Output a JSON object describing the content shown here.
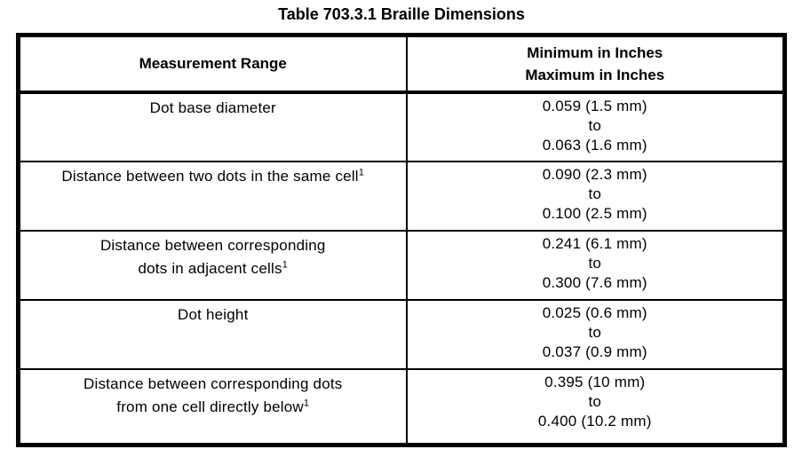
{
  "title": "Table 703.3.1 Braille Dimensions",
  "colors": {
    "text": "#000000",
    "background": "#ffffff",
    "border": "#000000"
  },
  "table": {
    "column_headers": {
      "measurement_range": "Measurement Range",
      "min_max_line1": "Minimum in Inches",
      "min_max_line2": "Maximum in Inches"
    },
    "rows": [
      {
        "label_lines": [
          "Dot base diameter"
        ],
        "footnote": "",
        "min": "0.059 (1.5 mm)",
        "separator": "to",
        "max": "0.063 (1.6 mm)"
      },
      {
        "label_lines": [
          "Distance between two dots in the same cell"
        ],
        "footnote": "1",
        "min": "0.090 (2.3 mm)",
        "separator": "to",
        "max": "0.100 (2.5 mm)"
      },
      {
        "label_lines": [
          "Distance between corresponding",
          "dots in adjacent cells"
        ],
        "footnote": "1",
        "min": "0.241 (6.1 mm)",
        "separator": "to",
        "max": "0.300 (7.6 mm)"
      },
      {
        "label_lines": [
          "Dot height"
        ],
        "footnote": "",
        "min": "0.025 (0.6 mm)",
        "separator": "to",
        "max": "0.037 (0.9 mm)"
      },
      {
        "label_lines": [
          "Distance between corresponding dots",
          "from one cell directly below"
        ],
        "footnote": "1",
        "min": "0.395 (10 mm)",
        "separator": "to",
        "max": "0.400 (10.2 mm)"
      }
    ]
  }
}
